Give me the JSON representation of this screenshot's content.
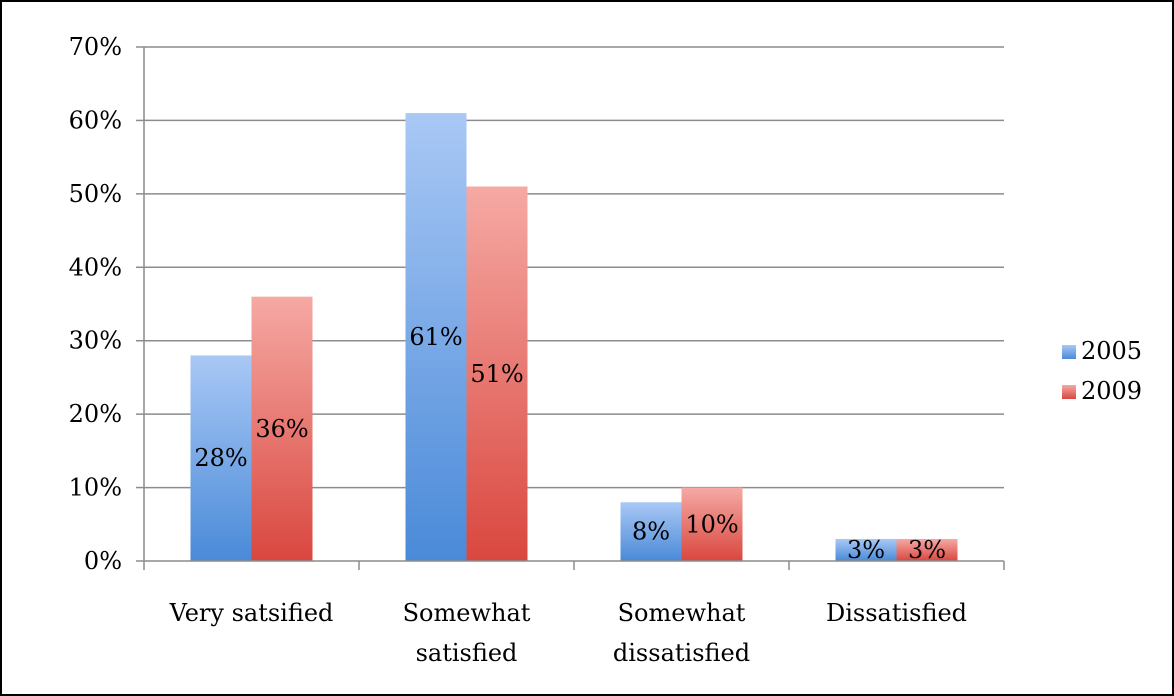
{
  "chart_data": {
    "type": "bar",
    "title": "",
    "xlabel": "",
    "ylabel": "",
    "ylim": [
      0,
      70
    ],
    "yticks": [
      0,
      10,
      20,
      30,
      40,
      50,
      60,
      70
    ],
    "ytick_format": "%",
    "grid": true,
    "legend_position": "right",
    "categories": [
      [
        "Very satsified"
      ],
      [
        "Somewhat",
        "satisfied"
      ],
      [
        "Somewhat",
        "dissatisfied"
      ],
      [
        "Dissatisfied"
      ]
    ],
    "series": [
      {
        "name": "2005",
        "values": [
          28,
          61,
          8,
          3
        ],
        "labels": [
          "28%",
          "61%",
          "8%",
          "3%"
        ],
        "color_top": "#a9c8f5",
        "color_bottom": "#4a8ad8"
      },
      {
        "name": "2009",
        "values": [
          36,
          51,
          10,
          3
        ],
        "labels": [
          "36%",
          "51%",
          "10%",
          "3%"
        ],
        "color_top": "#f6a9a4",
        "color_bottom": "#d9473f"
      }
    ]
  }
}
